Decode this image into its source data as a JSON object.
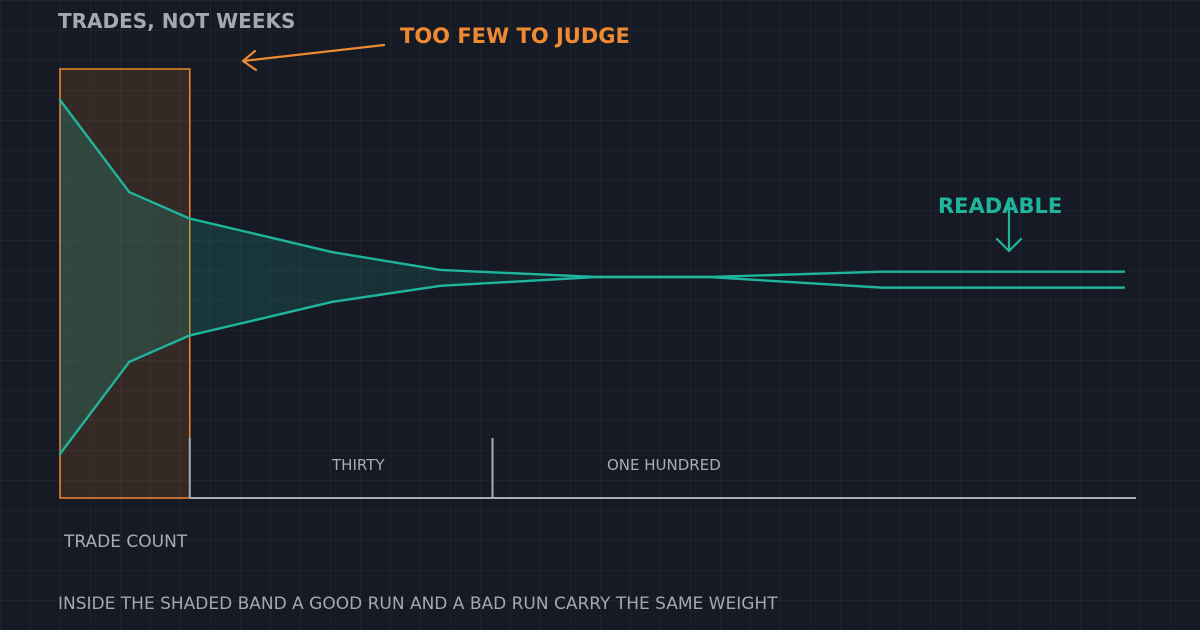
{
  "chart_data": {
    "type": "line",
    "title": "TRADES, NOT WEEKS",
    "xlabel": "TRADE COUNT",
    "ylabel": "",
    "x_ticks": [
      {
        "value": 30,
        "label": "THIRTY"
      },
      {
        "value": 100,
        "label": "ONE HUNDRED"
      }
    ],
    "xlim": [
      0,
      246
    ],
    "ylim": [
      -1,
      1
    ],
    "grid": true,
    "legend": "none",
    "shaded_band": {
      "x_start": 0,
      "x_end": 30
    },
    "x": [
      0,
      16,
      30,
      44,
      63,
      88,
      124,
      150,
      190,
      227,
      246
    ],
    "series": [
      {
        "values": [
          1.0,
          0.48,
          0.33,
          0.25,
          0.14,
          0.04,
          0.0,
          0.0,
          0.03,
          0.03,
          0.03
        ]
      },
      {
        "values": [
          -1.0,
          -0.48,
          -0.33,
          -0.25,
          -0.14,
          -0.05,
          0.0,
          0.0,
          -0.06,
          -0.06,
          -0.06
        ]
      }
    ],
    "annotations": [
      {
        "text": "TOO FEW TO JUDGE",
        "color": "#f08a32"
      },
      {
        "text": "READABLE",
        "color": "#1fb59c"
      }
    ],
    "caption": "INSIDE THE SHADED BAND A GOOD RUN AND A BAD RUN CARRY THE SAME WEIGHT"
  },
  "colors": {
    "background": "#161a24",
    "band_line": "#1fb59c",
    "shade": "#f08a32",
    "axis": "#a8adb6",
    "text": "#a3a8b2"
  }
}
